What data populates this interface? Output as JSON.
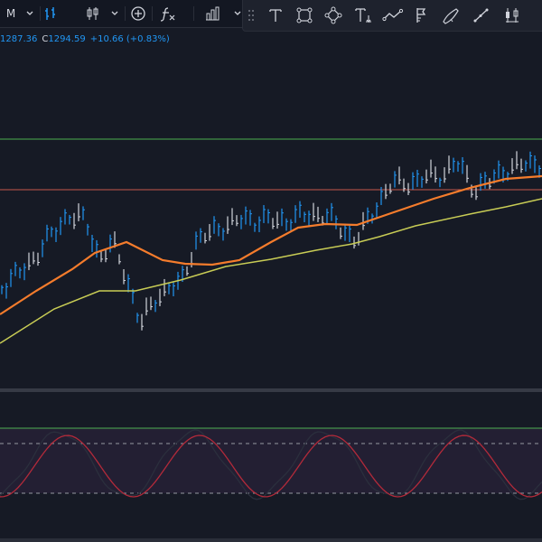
{
  "toolbar": {
    "interval_label": "M",
    "icons": [
      "chevron-down-icon",
      "bar-chart-icon",
      "candles-icon",
      "chevron-down-icon",
      "plus-circle-icon",
      "function-icon",
      "columns-icon",
      "chevron-down-icon"
    ]
  },
  "drawing_tools": [
    "drag-handle-icon",
    "text-tool-icon",
    "rectangle-tool-icon",
    "path-tool-icon",
    "text-anchor-tool-icon",
    "trend-line-icon",
    "flag-tool-icon",
    "brush-tool-icon",
    "ruler-tool-icon",
    "candle-tool-icon"
  ],
  "legend": {
    "value1": "1287.36",
    "close_prefix": "C",
    "close": "1294.59",
    "change": "+10.66 (+0.83%)"
  },
  "colors": {
    "up": "#2196f3",
    "down": "#d1d4dc",
    "ema_fast": "#f57c2c",
    "ema_slow": "#c8cc55",
    "hline_green": "#4caf50",
    "hline_red": "#c6584b",
    "stoch_k": "#2b2f3d",
    "stoch_d": "#b22a3a"
  },
  "chart_data": {
    "type": "line",
    "series": [],
    "ohlc_scale": "relative"
  }
}
